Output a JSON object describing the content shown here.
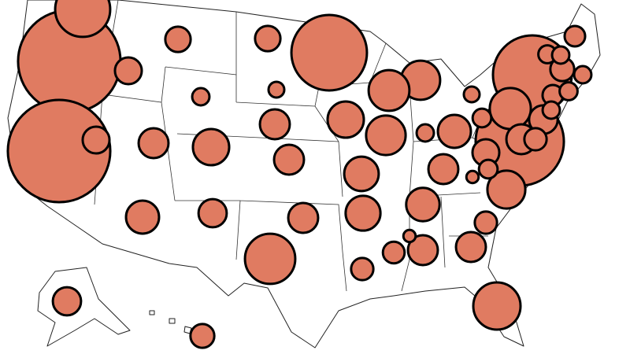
{
  "chart_data": {
    "type": "bubble-map",
    "color": "#e07b61",
    "values": [
      423,
      423,
      314,
      250,
      230,
      102,
      90,
      63,
      122,
      68,
      53,
      58,
      48,
      62,
      36,
      36,
      44,
      45,
      44,
      67,
      53,
      29,
      36,
      36,
      36,
      32,
      49,
      33,
      36,
      26,
      36,
      20,
      36,
      23,
      20,
      29,
      26,
      29,
      19,
      32,
      23,
      20,
      17,
      17,
      13,
      13,
      12,
      12,
      12,
      10,
      10,
      14,
      6,
      6,
      12,
      12,
      14
    ]
  }
}
